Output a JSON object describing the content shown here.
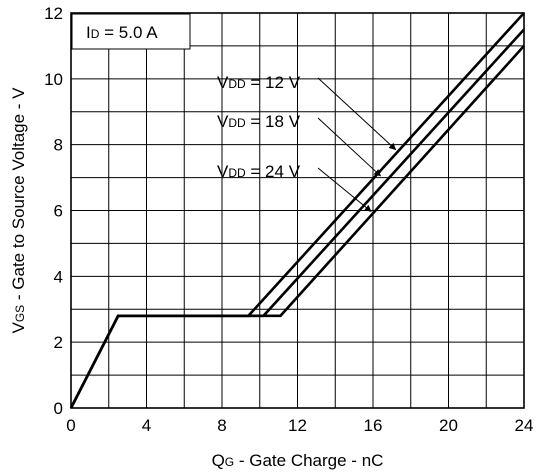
{
  "chart_data": {
    "type": "line",
    "xlabel": {
      "main": "Q",
      "sub": "G",
      "rest": " - Gate Charge - nC"
    },
    "ylabel": {
      "main": "V",
      "sub": "GS",
      "rest": " - Gate to Source Voltage - V"
    },
    "xlim": [
      0,
      24
    ],
    "ylim": [
      0,
      12
    ],
    "xticks": [
      0,
      4,
      8,
      12,
      16,
      20,
      24
    ],
    "yticks": [
      0,
      2,
      4,
      6,
      8,
      10,
      12
    ],
    "grid": true,
    "series": [
      {
        "label": {
          "main": "V",
          "sub": "DD",
          "rest": " = 12 V"
        },
        "x": [
          0,
          2.5,
          9.4,
          24
        ],
        "y": [
          0,
          2.8,
          2.8,
          12
        ]
      },
      {
        "label": {
          "main": "V",
          "sub": "DD",
          "rest": " = 18 V"
        },
        "x": [
          0,
          2.5,
          10.2,
          24
        ],
        "y": [
          0,
          2.8,
          2.8,
          11.5
        ]
      },
      {
        "label": {
          "main": "V",
          "sub": "DD",
          "rest": " = 24 V"
        },
        "x": [
          0,
          2.5,
          11.1,
          24
        ],
        "y": [
          0,
          2.8,
          2.8,
          11
        ]
      }
    ],
    "annotations": [
      {
        "label": {
          "main": "V",
          "sub": "DD",
          "rest": " = 12 V"
        },
        "arrow_to": [
          17.2,
          7.85
        ]
      },
      {
        "label": {
          "main": "V",
          "sub": "DD",
          "rest": " = 18 V"
        },
        "arrow_to": [
          16.4,
          7.05
        ]
      },
      {
        "label": {
          "main": "V",
          "sub": "DD",
          "rest": " = 24 V"
        },
        "arrow_to": [
          15.9,
          5.97
        ]
      }
    ],
    "condition": {
      "main": "I",
      "sub": "D",
      "rest": " = 5.0 A"
    }
  }
}
